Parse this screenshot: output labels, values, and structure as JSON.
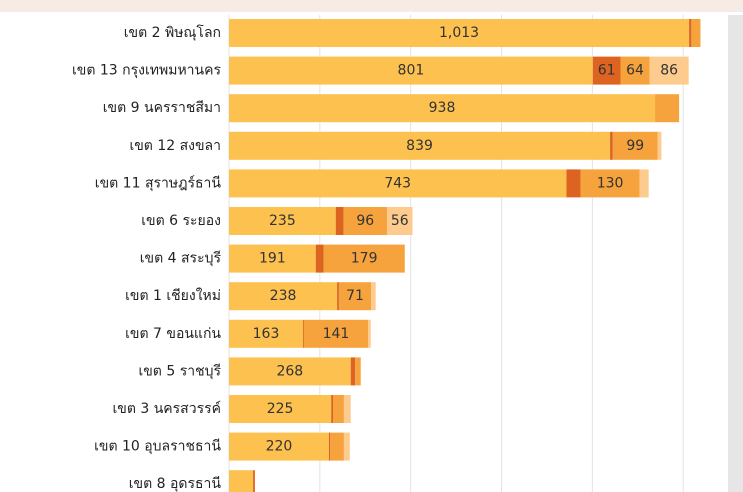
{
  "chart_data": {
    "type": "stacked-bar-horizontal",
    "categories": [
      "เขต 2 พิษณุโลก",
      "เขต 13 กรุงเทพมหานคร",
      "เขต 9 นครราชสีมา",
      "เขต 12 สงขลา",
      "เขต 11 สุราษฎร์ธานี",
      "เขต 6 ระยอง",
      "เขต 4 สระบุรี",
      "เขต 1 เชียงใหม่",
      "เขต 7 ขอนแก่น",
      "เขต 5 ราชบุรี",
      "เขต 3 นครสวรรค์",
      "เขต 10 อุบลราชธานี",
      "เขต 8 อุดรธานี"
    ],
    "series": [
      {
        "color": "#FDC14F",
        "values": [
          1013,
          801,
          938,
          839,
          743,
          235,
          191,
          238,
          163,
          268,
          225,
          220,
          53
        ],
        "value_labels": [
          "1,013",
          "801",
          "938",
          "839",
          "743",
          "235",
          "191",
          "238",
          "163",
          "268",
          "225",
          "220",
          null
        ]
      },
      {
        "color": "#DC6420",
        "values": [
          5,
          61,
          0,
          6,
          31,
          17,
          17,
          4,
          2,
          10,
          4,
          3,
          4
        ],
        "value_labels": [
          null,
          "61",
          null,
          null,
          null,
          null,
          null,
          null,
          null,
          null,
          null,
          null,
          null
        ]
      },
      {
        "color": "#F6A33D",
        "values": [
          20,
          64,
          53,
          99,
          130,
          96,
          179,
          71,
          141,
          12,
          24,
          30,
          0
        ],
        "value_labels": [
          null,
          "64",
          null,
          "99",
          "130",
          "96",
          "179",
          "71",
          "141",
          null,
          null,
          null,
          null
        ]
      },
      {
        "color": "#FDCB8E",
        "values": [
          0,
          86,
          0,
          8,
          20,
          56,
          0,
          10,
          6,
          0,
          15,
          13,
          0
        ],
        "value_labels": [
          null,
          "86",
          null,
          null,
          null,
          "56",
          null,
          null,
          null,
          null,
          null,
          null,
          null
        ]
      }
    ],
    "xlim": [
      0,
      1070
    ],
    "xticks": [
      0,
      200,
      400,
      600,
      800,
      1000
    ],
    "grid": true
  }
}
